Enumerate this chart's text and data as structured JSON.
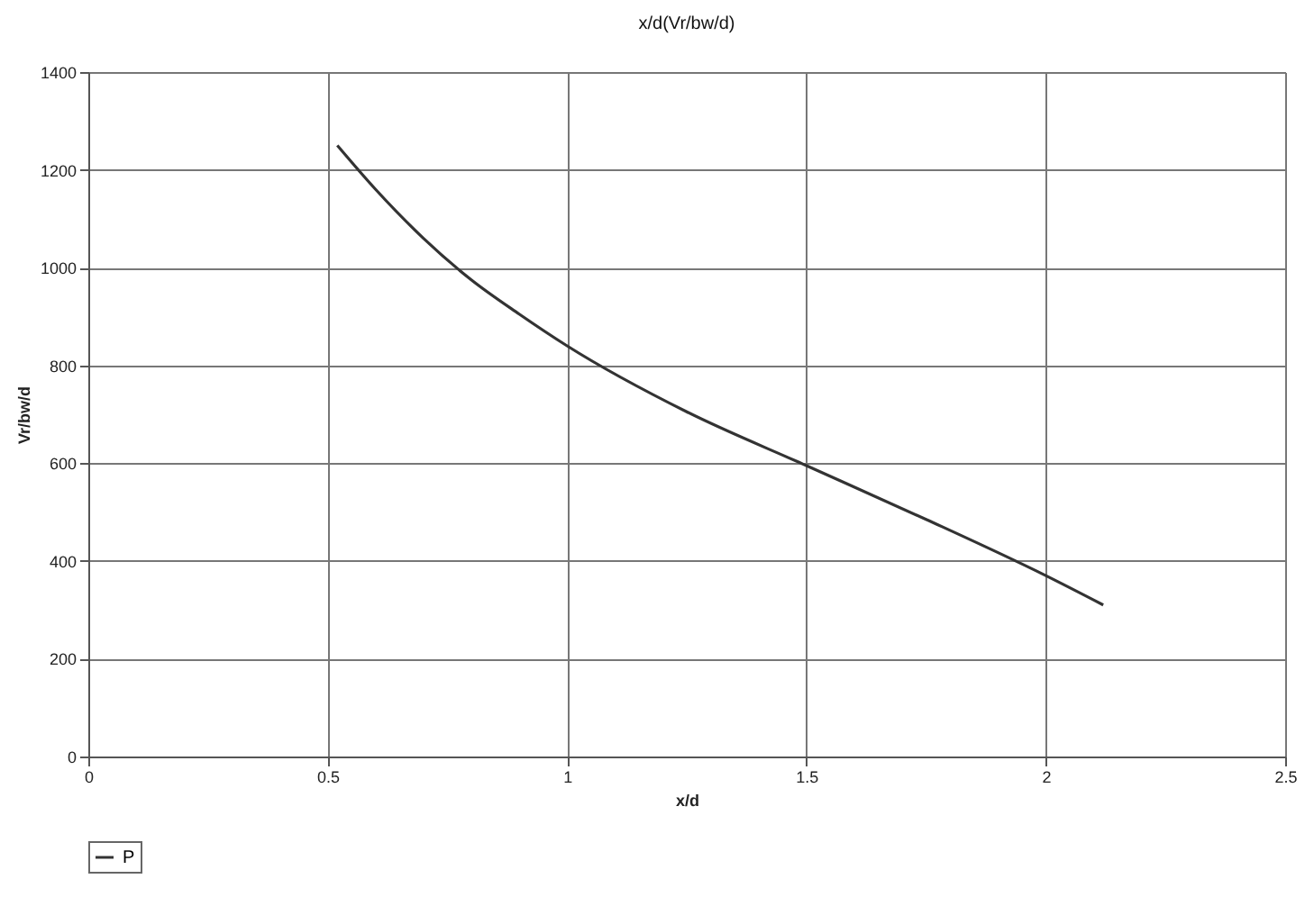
{
  "chart_data": {
    "type": "line",
    "title": "x/d(Vr/bw/d)",
    "xlabel": "x/d",
    "ylabel": "Vr/bw/d",
    "x": [
      0.52,
      0.6,
      0.7,
      0.8,
      0.9,
      1,
      1.25,
      1.5,
      1.75,
      2,
      2.12
    ],
    "series": [
      {
        "name": "P",
        "color": "#333333",
        "values": [
          1250,
          1160,
          1060,
          975,
          905,
          840,
          705,
          595,
          485,
          370,
          310
        ]
      }
    ],
    "xlim": [
      0,
      2.5
    ],
    "xticks": [
      0,
      0.5,
      1,
      1.5,
      2,
      2.5
    ],
    "ylim": [
      0,
      1400
    ],
    "yticks": [
      0,
      200,
      400,
      600,
      800,
      1000,
      1200,
      1400
    ],
    "grid": true,
    "legend": "bottom",
    "marker": "none",
    "line_style": "solid"
  }
}
